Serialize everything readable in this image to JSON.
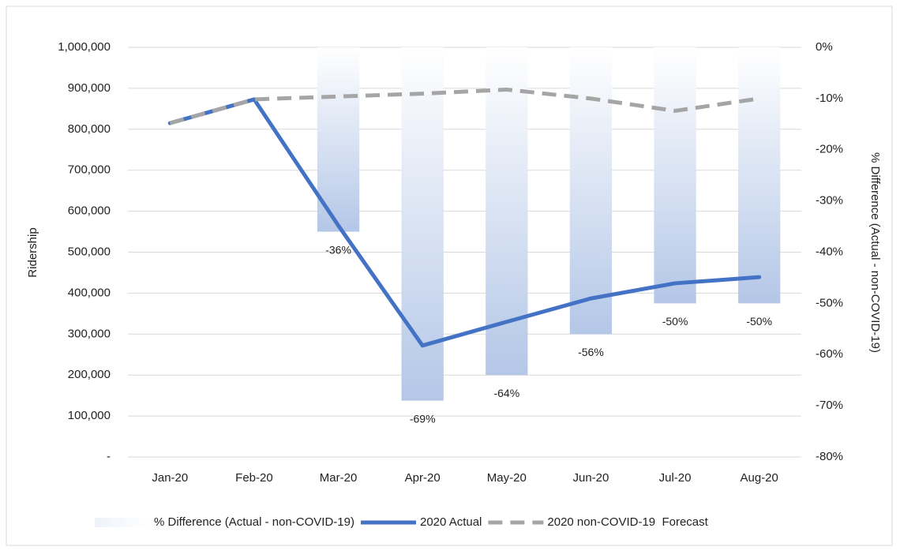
{
  "chart_data": {
    "type": "combo",
    "categories": [
      "Jan-20",
      "Feb-20",
      "Mar-20",
      "Apr-20",
      "May-20",
      "Jun-20",
      "Jul-20",
      "Aug-20"
    ],
    "y_label": "Ridership",
    "y2_label": "% Difference (Actual - non-COVID-19)",
    "ylim": [
      0,
      1000000
    ],
    "yticks": [
      {
        "value": 0,
        "label": "-"
      },
      {
        "value": 100000,
        "label": "100,000"
      },
      {
        "value": 200000,
        "label": "200,000"
      },
      {
        "value": 300000,
        "label": "300,000"
      },
      {
        "value": 400000,
        "label": "400,000"
      },
      {
        "value": 500000,
        "label": "500,000"
      },
      {
        "value": 600000,
        "label": "600,000"
      },
      {
        "value": 700000,
        "label": "700,000"
      },
      {
        "value": 800000,
        "label": "800,000"
      },
      {
        "value": 900000,
        "label": "900,000"
      },
      {
        "value": 1000000,
        "label": "1,000,000"
      }
    ],
    "y2lim": [
      -80,
      0
    ],
    "y2ticks": [
      {
        "value": -80,
        "label": "-80%"
      },
      {
        "value": -70,
        "label": "-70%"
      },
      {
        "value": -60,
        "label": "-60%"
      },
      {
        "value": -50,
        "label": "-50%"
      },
      {
        "value": -40,
        "label": "-40%"
      },
      {
        "value": -30,
        "label": "-30%"
      },
      {
        "value": -20,
        "label": "-20%"
      },
      {
        "value": -10,
        "label": "-10%"
      },
      {
        "value": 0,
        "label": "0%"
      }
    ],
    "grid": true,
    "legend": "bottom",
    "series": [
      {
        "name": "% Difference (Actual - non-COVID-19)",
        "type": "bar",
        "axis": "y2",
        "color": "#b4c7e7",
        "values": [
          null,
          null,
          -36,
          -69,
          -64,
          -56,
          -50,
          -50
        ],
        "value_labels": [
          null,
          null,
          "-36%",
          "-69%",
          "-64%",
          "-56%",
          "-50%",
          "-50%"
        ]
      },
      {
        "name": "2020 Actual",
        "type": "line",
        "color": "#4472c4",
        "dashed": false,
        "values": [
          815000,
          873000,
          565000,
          272000,
          330000,
          387000,
          424000,
          439000
        ]
      },
      {
        "name": "2020 non-COVID-19  Forecast",
        "type": "line",
        "color": "#a5a5a5",
        "dashed": true,
        "values": [
          815000,
          873000,
          880000,
          887000,
          897000,
          875000,
          845000,
          875000
        ]
      }
    ]
  }
}
